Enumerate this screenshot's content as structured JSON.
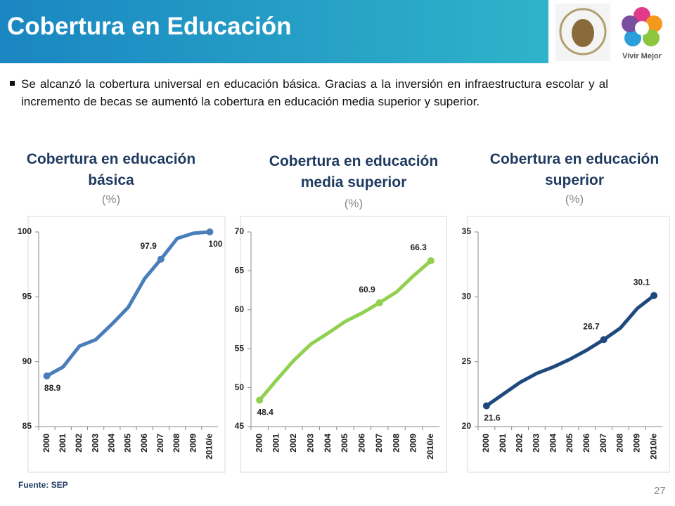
{
  "header": {
    "title": "Cobertura en Educación",
    "logo_text": "Vivir Mejor"
  },
  "bullet": "Se alcanzó la cobertura universal en educación básica. Gracias a la inversión en infraestructura escolar y al incremento de becas se aumentó la cobertura en educación media superior y superior.",
  "source": "Fuente: SEP",
  "page_number": "27",
  "chart_data": [
    {
      "type": "line",
      "title": "Cobertura en educación básica",
      "subtitle": "(%)",
      "categories": [
        "2000",
        "2001",
        "2002",
        "2003",
        "2004",
        "2005",
        "2006",
        "2007",
        "2008",
        "2009",
        "2010/e"
      ],
      "series": [
        {
          "color": "#4a7ebb",
          "values": [
            88.9,
            89.6,
            91.2,
            91.7,
            92.9,
            94.2,
            96.4,
            97.9,
            99.5,
            99.9,
            100
          ],
          "value_labels": [
            "88.9",
            null,
            null,
            null,
            null,
            null,
            null,
            "97.9",
            null,
            null,
            "100"
          ]
        }
      ],
      "ylim": [
        85,
        100
      ],
      "yticks": [
        85,
        90,
        95,
        100
      ]
    },
    {
      "type": "line",
      "title": "Cobertura en educación media superior",
      "subtitle": "(%)",
      "categories": [
        "2000",
        "2001",
        "2002",
        "2003",
        "2004",
        "2005",
        "2006",
        "2007",
        "2008",
        "2009",
        "2010/e"
      ],
      "series": [
        {
          "color": "#92d050",
          "values": [
            48.4,
            51.0,
            53.5,
            55.6,
            57.0,
            58.5,
            59.6,
            60.9,
            62.3,
            64.4,
            66.3
          ],
          "value_labels": [
            "48.4",
            null,
            null,
            null,
            null,
            null,
            null,
            "60.9",
            null,
            null,
            "66.3"
          ]
        }
      ],
      "ylim": [
        45,
        70
      ],
      "yticks": [
        45,
        50,
        55,
        60,
        65,
        70
      ]
    },
    {
      "type": "line",
      "title": "Cobertura en educación superior",
      "subtitle": "(%)",
      "categories": [
        "2000",
        "2001",
        "2002",
        "2003",
        "2004",
        "2005",
        "2006",
        "2007",
        "2008",
        "2009",
        "2010/e"
      ],
      "series": [
        {
          "color": "#1f497d",
          "values": [
            21.6,
            22.5,
            23.4,
            24.1,
            24.6,
            25.2,
            25.9,
            26.7,
            27.6,
            29.1,
            30.1
          ],
          "value_labels": [
            "21.6",
            null,
            null,
            null,
            null,
            null,
            null,
            "26.7",
            null,
            null,
            "30.1"
          ]
        }
      ],
      "ylim": [
        20,
        35
      ],
      "yticks": [
        20,
        25,
        30,
        35
      ]
    }
  ]
}
